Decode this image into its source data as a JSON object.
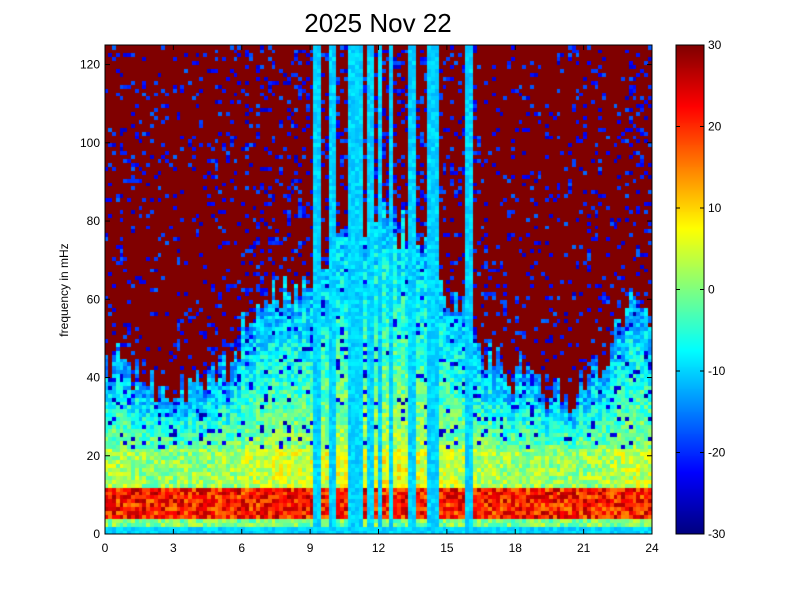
{
  "chart_data": {
    "type": "heatmap",
    "title": "2025 Nov 22",
    "xlabel": "",
    "ylabel": "frequency in mHz",
    "xlim": [
      0,
      24
    ],
    "ylim": [
      0,
      125
    ],
    "xticks": [
      0,
      3,
      6,
      9,
      12,
      15,
      18,
      21,
      24
    ],
    "xtick_labels": [
      "0",
      "3",
      "6",
      "9",
      "12",
      "15",
      "18",
      "21",
      "24"
    ],
    "yticks": [
      0,
      20,
      40,
      60,
      80,
      100,
      120
    ],
    "ytick_labels": [
      "0",
      "20",
      "40",
      "60",
      "80",
      "100",
      "120"
    ],
    "colorbar": {
      "colormap": "jet",
      "range": [
        -30,
        30
      ],
      "ticks": [
        30,
        20,
        10,
        0,
        -10,
        -20,
        -30
      ],
      "tick_labels": [
        "30",
        "20",
        "10",
        "0",
        "-10",
        "-20",
        "-30"
      ]
    },
    "grid": false,
    "time_bins": 144,
    "freq_bins": 125,
    "broadband_bursts_hours": [
      9.3,
      10.0,
      10.8,
      11.2,
      11.7,
      12.1,
      12.6,
      13.4,
      13.6,
      14.3,
      14.6,
      16.0
    ],
    "description_fields": {
      "low_freq_band_value_range": [
        15,
        30
      ],
      "mid_freq_value_range": [
        -15,
        5
      ],
      "high_freq_background_value": 30,
      "dropout_value_range": [
        -30,
        -20
      ]
    }
  }
}
